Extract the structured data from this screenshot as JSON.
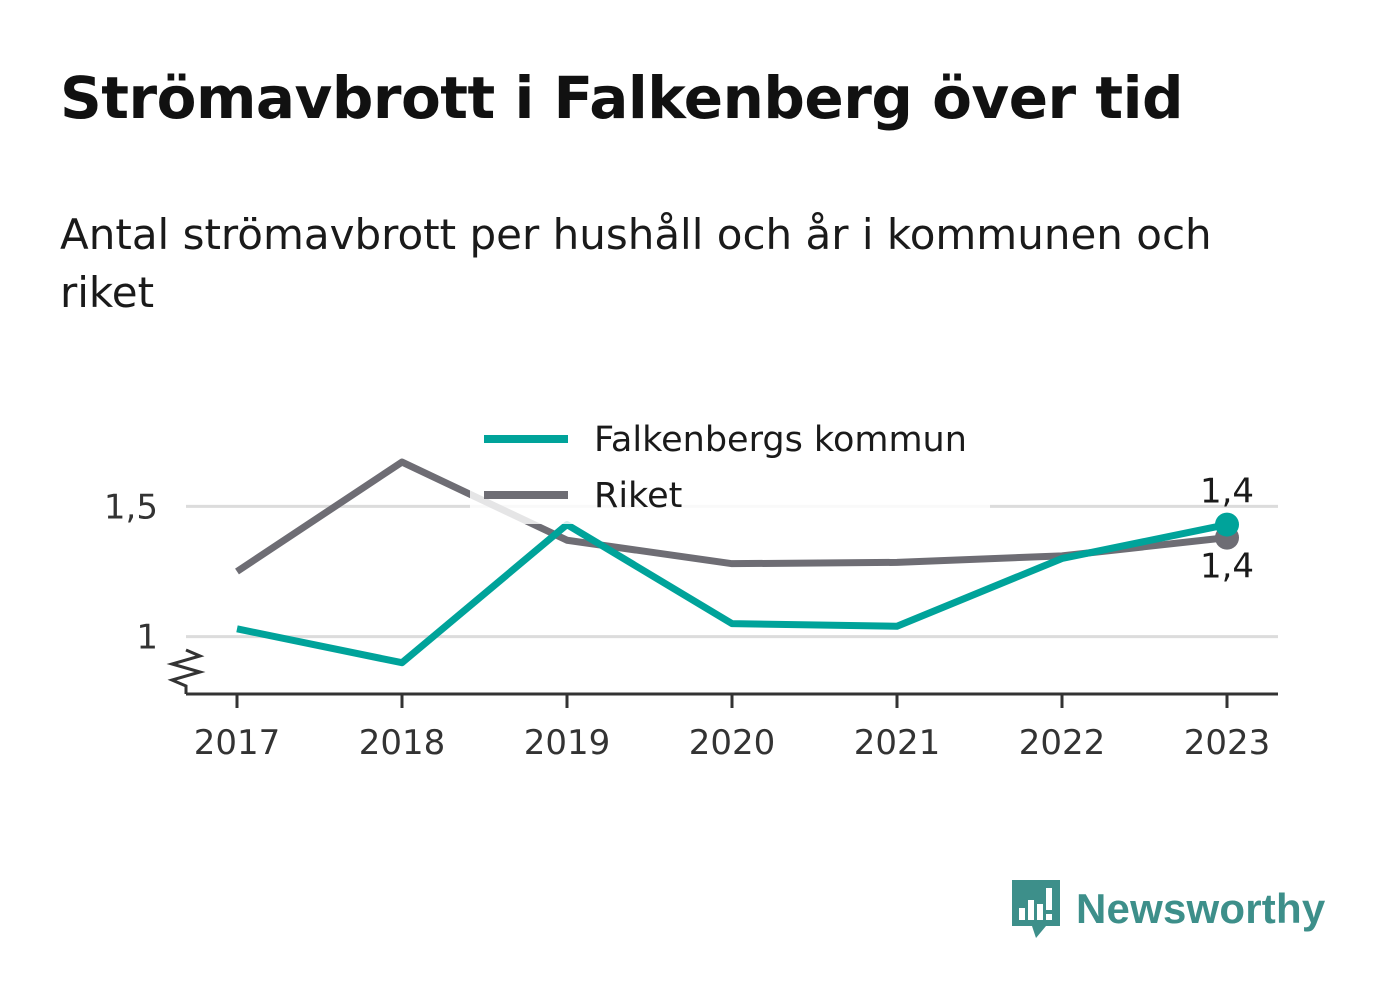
{
  "title": "Strömavbrott i Falkenberg över tid",
  "subtitle": "Antal strömavbrott per hushåll och år i kommunen och riket",
  "brand": {
    "name": "Newsworthy",
    "icon": "bar-chart-speech-bubble-icon",
    "color": "#3d8f8a"
  },
  "chart_data": {
    "type": "line",
    "x": [
      "2017",
      "2018",
      "2019",
      "2020",
      "2021",
      "2022",
      "2023"
    ],
    "ylim": [
      0.78,
      1.72
    ],
    "y_ticks": [
      {
        "value": 1.5,
        "label": "1,5"
      },
      {
        "value": 1,
        "label": "1"
      }
    ],
    "y_axis_break": true,
    "grid": true,
    "legend": "top-center",
    "series": [
      {
        "name": "Falkenbergs kommun",
        "color": "#00a39a",
        "values": [
          1.03,
          0.9,
          1.43,
          1.05,
          1.04,
          1.3,
          1.43
        ],
        "end_label": "1,4"
      },
      {
        "name": "Riket",
        "color": "#6e6d74",
        "values": [
          1.25,
          1.67,
          1.37,
          1.28,
          1.285,
          1.31,
          1.38
        ],
        "end_label": "1,4"
      }
    ]
  }
}
